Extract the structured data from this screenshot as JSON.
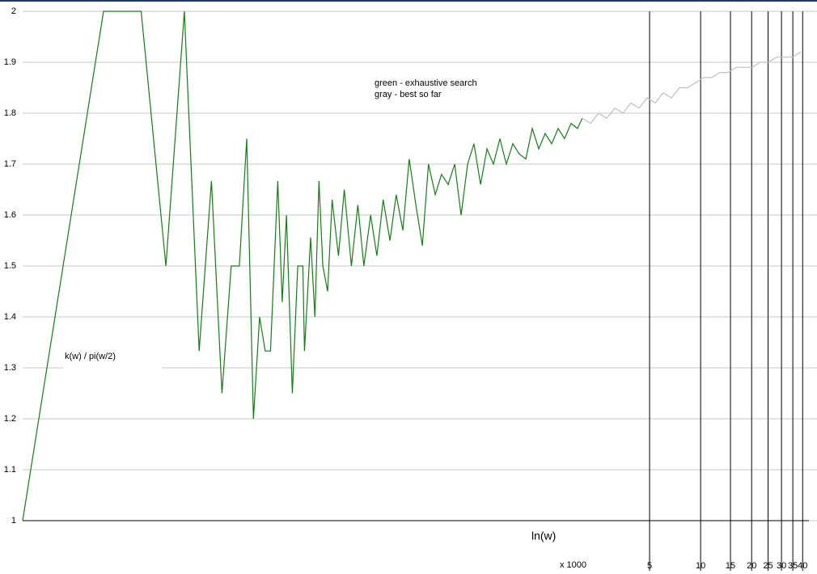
{
  "chart_data": {
    "type": "line",
    "ylabel": "k(w) / pi(w/2)",
    "xlabel": "ln(w)",
    "x_unit_note": "x 1000",
    "x": [
      1,
      3,
      5,
      7,
      9,
      11,
      13,
      15,
      17,
      19,
      21,
      23,
      25,
      27,
      29,
      32,
      34,
      36,
      39,
      42,
      45,
      46,
      50,
      53,
      56,
      59,
      63,
      67,
      73,
      79,
      87,
      95,
      103,
      113,
      123,
      134,
      147,
      160,
      175,
      191,
      209,
      228,
      248,
      272,
      296,
      324,
      354,
      386,
      422,
      460,
      503,
      549,
      599,
      654,
      714,
      780,
      851,
      930,
      1015,
      1109,
      1210,
      1322,
      1443,
      1575,
      1720,
      1877,
      2005,
      2240,
      2500,
      2790,
      3115,
      3477,
      3880,
      4331,
      4834,
      5395,
      6023,
      6722,
      7503,
      8375,
      9347,
      10433,
      11645,
      12998,
      14508,
      16192,
      18073,
      20173,
      22516,
      25132,
      28051,
      31310,
      34947,
      39006
    ],
    "series": [
      {
        "name": "green - exhaustive search",
        "color": "#1a7a1a",
        "values": [
          1,
          2,
          2,
          1.5,
          2,
          1.333,
          1.667,
          1.25,
          1.5,
          1.5,
          1.75,
          1.2,
          1.4,
          1.333,
          1.333,
          1.667,
          1.429,
          1.6,
          1.25,
          1.5,
          1.5,
          1.333,
          1.556,
          1.4,
          1.667,
          1.5,
          1.45,
          1.63,
          1.52,
          1.65,
          1.5,
          1.62,
          1.5,
          1.6,
          1.52,
          1.63,
          1.55,
          1.64,
          1.57,
          1.71,
          1.62,
          1.54,
          1.7,
          1.64,
          1.68,
          1.66,
          1.7,
          1.6,
          1.7,
          1.74,
          1.66,
          1.73,
          1.7,
          1.75,
          1.7,
          1.74,
          1.72,
          1.71,
          1.77,
          1.73,
          1.76,
          1.74,
          1.77,
          1.75,
          1.78,
          1.77,
          1.79,
          null,
          null,
          null,
          null,
          null,
          null,
          null,
          null,
          null,
          null,
          null,
          null,
          null,
          null,
          null,
          null,
          null,
          null,
          null,
          null,
          null,
          null,
          null,
          null,
          null,
          null,
          null
        ]
      },
      {
        "name": "gray - best so far",
        "color": "#c0c0c0",
        "values": [
          null,
          null,
          null,
          null,
          null,
          null,
          null,
          null,
          null,
          null,
          null,
          null,
          null,
          null,
          null,
          null,
          null,
          null,
          null,
          null,
          null,
          null,
          null,
          null,
          null,
          null,
          null,
          null,
          null,
          null,
          null,
          null,
          null,
          null,
          null,
          null,
          null,
          null,
          null,
          null,
          null,
          null,
          null,
          null,
          null,
          null,
          null,
          null,
          null,
          null,
          null,
          null,
          null,
          null,
          null,
          null,
          null,
          null,
          null,
          null,
          null,
          null,
          null,
          null,
          null,
          null,
          1.79,
          1.78,
          1.8,
          1.79,
          1.81,
          1.8,
          1.82,
          1.81,
          1.83,
          1.82,
          1.84,
          1.83,
          1.85,
          1.85,
          1.86,
          1.87,
          1.87,
          1.88,
          1.88,
          1.89,
          1.89,
          1.89,
          1.9,
          1.9,
          1.91,
          1.91,
          1.91,
          1.92
        ]
      }
    ],
    "xscale": "log",
    "xlim": [
      1,
      48600
    ],
    "xticks": [
      {
        "value": 5000,
        "label": "5"
      },
      {
        "value": 10000,
        "label": "10"
      },
      {
        "value": 15000,
        "label": "15"
      },
      {
        "value": 20000,
        "label": "20"
      },
      {
        "value": 25000,
        "label": "25"
      },
      {
        "value": 30000,
        "label": "30"
      },
      {
        "value": 35000,
        "label": "35"
      },
      {
        "value": 40000,
        "label": "40"
      }
    ],
    "ylim": [
      1,
      2
    ],
    "yticks": [
      1,
      1.1,
      1.2,
      1.3,
      1.4,
      1.5,
      1.6,
      1.7,
      1.8,
      1.9,
      2
    ],
    "grid": true
  }
}
